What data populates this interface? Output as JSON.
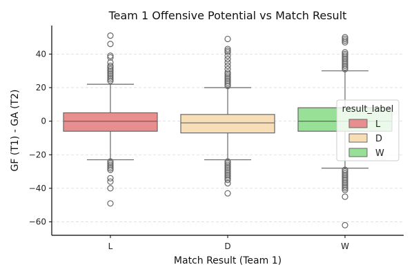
{
  "chart_data": {
    "type": "box",
    "title": "Team 1 Offensive Potential vs Match Result",
    "xlabel": "Match Result (Team 1)",
    "ylabel": "GF (T1) - GA (T2)",
    "categories": [
      "L",
      "D",
      "W"
    ],
    "ylim": [
      -68,
      57
    ],
    "yticks": [
      -60,
      -40,
      -20,
      0,
      20,
      40
    ],
    "ytick_labels": [
      "−60",
      "−40",
      "−20",
      "0",
      "20",
      "40"
    ],
    "grid": "horizontal dashed",
    "legend": {
      "title": "result_label",
      "position": "right",
      "entries": [
        "L",
        "D",
        "W"
      ]
    },
    "colors": {
      "L": "#e88e8e",
      "D": "#f8deb6",
      "W": "#98e095",
      "line": "#666666"
    },
    "boxes": [
      {
        "category": "L",
        "whisker_low": -23,
        "q1": -6,
        "median": 0,
        "q3": 5,
        "whisker_high": 22,
        "outliers": [
          51,
          46,
          39,
          38,
          35,
          33,
          32,
          31,
          30,
          29,
          28,
          27,
          26,
          25,
          24,
          -24,
          -25,
          -26,
          -27,
          -28,
          -29,
          -34,
          -36,
          -40,
          -49
        ]
      },
      {
        "category": "D",
        "whisker_low": -23,
        "q1": -7,
        "median": -1,
        "q3": 4,
        "whisker_high": 20,
        "outliers": [
          49,
          43,
          42,
          41,
          39,
          37,
          35,
          33,
          31,
          29,
          28,
          27,
          26,
          25,
          24,
          23,
          22,
          21,
          -24,
          -25,
          -26,
          -27,
          -28,
          -29,
          -30,
          -31,
          -32,
          -33,
          -34,
          -35,
          -37,
          -43
        ]
      },
      {
        "category": "W",
        "whisker_low": -28,
        "q1": -6,
        "median": 0,
        "q3": 8,
        "whisker_high": 30,
        "outliers": [
          50,
          49,
          48,
          47,
          41,
          40,
          39,
          38,
          37,
          36,
          35,
          34,
          33,
          32,
          31,
          -29,
          -30,
          -31,
          -32,
          -33,
          -34,
          -35,
          -36,
          -37,
          -38,
          -39,
          -40,
          -41,
          -45,
          -62
        ]
      }
    ]
  }
}
